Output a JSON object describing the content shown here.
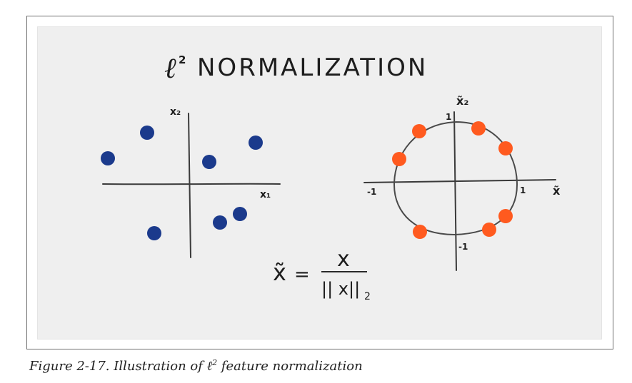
{
  "figure": {
    "title_symbol": "ℓ",
    "title_superscript": "2",
    "title_text": "NORMALIZATION",
    "left_plot": {
      "x_axis_label": "x₁",
      "y_axis_label": "x₂",
      "point_color": "#1b3a8c"
    },
    "right_plot": {
      "x_axis_label": "x̃",
      "y_axis_label": "x̃₂",
      "tick_labels": {
        "top": "1",
        "bottom": "-1",
        "left": "-1",
        "right": "1"
      },
      "point_color": "#ff5a1f"
    },
    "formula": {
      "lhs": "x̃",
      "equals": "=",
      "numerator": "x",
      "denominator": "|| x||",
      "subscript": "2"
    }
  },
  "caption": {
    "prefix": "Figure 2-17. Illustration of ",
    "ell": "ℓ",
    "sup": "2",
    "suffix": " feature normalization"
  }
}
